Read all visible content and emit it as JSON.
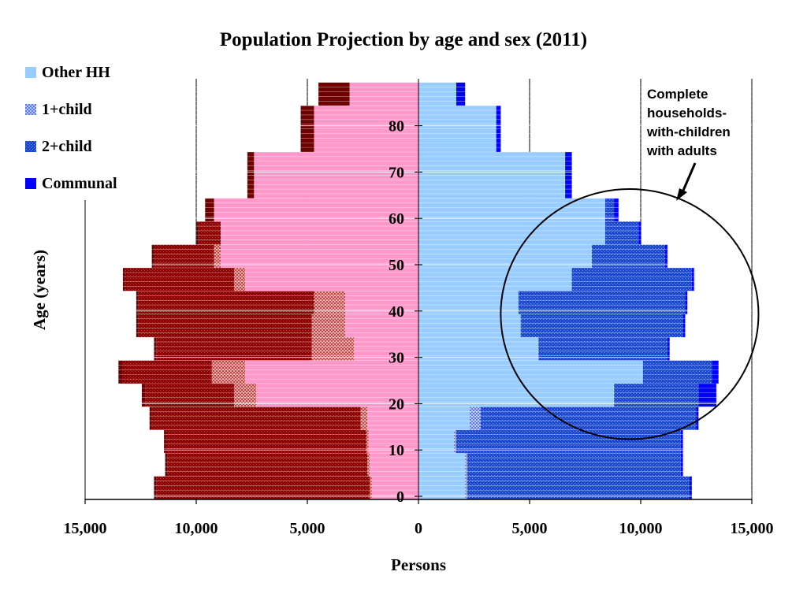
{
  "chart_data": {
    "type": "bar",
    "subtype": "population-pyramid-stacked",
    "title": "Population Projection by age and sex (2011)",
    "xlabel": "Persons",
    "ylabel": "Age (years)",
    "x_range": [
      -15000,
      15000
    ],
    "x_ticks": [
      "15,000",
      "10,000",
      "5,000",
      "0",
      "5,000",
      "10,000",
      "15,000"
    ],
    "x_tick_values": [
      -15000,
      -10000,
      -5000,
      0,
      5000,
      10000,
      15000
    ],
    "y_range": [
      0,
      90
    ],
    "y_ticks": [
      "0",
      "10",
      "20",
      "30",
      "40",
      "50",
      "60",
      "70",
      "80"
    ],
    "y_tick_values": [
      0,
      10,
      20,
      30,
      40,
      50,
      60,
      70,
      80
    ],
    "age_bands": [
      "0-4",
      "5-9",
      "10-14",
      "15-19",
      "20-24",
      "25-29",
      "30-34",
      "35-39",
      "40-44",
      "45-49",
      "50-54",
      "55-59",
      "60-64",
      "65-69",
      "70-74",
      "75-79",
      "80-84",
      "85-89"
    ],
    "females": {
      "side": "left",
      "series": [
        {
          "name": "Other HH",
          "values": [
            2100,
            2200,
            2250,
            2300,
            7300,
            7800,
            2900,
            3300,
            3300,
            7800,
            8900,
            8900,
            9200,
            7400,
            7400,
            4700,
            4700,
            3100
          ]
        },
        {
          "name": "1+child",
          "values": [
            100,
            100,
            100,
            300,
            1000,
            1500,
            1900,
            1500,
            1400,
            500,
            300,
            0,
            0,
            0,
            0,
            0,
            0,
            0
          ]
        },
        {
          "name": "2+child",
          "values": [
            9600,
            9000,
            9000,
            9400,
            4000,
            4000,
            7000,
            7800,
            7900,
            4900,
            2700,
            1000,
            0,
            0,
            0,
            0,
            0,
            0
          ]
        },
        {
          "name": "Communal",
          "values": [
            100,
            100,
            100,
            100,
            150,
            200,
            100,
            100,
            100,
            100,
            100,
            100,
            400,
            300,
            300,
            600,
            600,
            1400
          ]
        }
      ]
    },
    "males": {
      "side": "right",
      "series": [
        {
          "name": "Other HH",
          "values": [
            2100,
            2100,
            1600,
            2300,
            8800,
            10100,
            5400,
            4600,
            4500,
            6900,
            7800,
            8400,
            8400,
            6600,
            6600,
            3500,
            3500,
            1700
          ]
        },
        {
          "name": "1+child",
          "values": [
            100,
            100,
            100,
            500,
            0,
            0,
            0,
            0,
            0,
            0,
            0,
            0,
            0,
            0,
            0,
            0,
            0,
            0
          ]
        },
        {
          "name": "2+child",
          "values": [
            10000,
            9600,
            10100,
            9700,
            3800,
            3100,
            5800,
            7300,
            7500,
            5400,
            3300,
            1500,
            400,
            0,
            0,
            0,
            0,
            0
          ]
        },
        {
          "name": "Communal",
          "values": [
            100,
            100,
            100,
            100,
            800,
            300,
            100,
            100,
            100,
            100,
            100,
            100,
            200,
            300,
            300,
            200,
            200,
            400
          ]
        }
      ]
    },
    "colors": {
      "female": {
        "Other HH": "#ff99cc",
        "1+child": "#c86464",
        "2+child": "#8b0000",
        "Communal": "#6e0000"
      },
      "male": {
        "Other HH": "#99ccff",
        "1+child": "#7f9cf5",
        "2+child": "#1c48c8",
        "Communal": "#0000ff"
      }
    },
    "legend": {
      "placement": "top-left",
      "items": [
        {
          "label": "Other HH",
          "color": "#99ccff",
          "pattern": "solid"
        },
        {
          "label": "1+child",
          "color": "#7f9cf5",
          "pattern": "checker"
        },
        {
          "label": "2+child",
          "color": "#1c48c8",
          "pattern": "dots"
        },
        {
          "label": "Communal",
          "color": "#0000ff",
          "pattern": "solid"
        }
      ]
    },
    "annotation": {
      "lines": [
        "Complete",
        "households-",
        "with-children",
        "with adults"
      ],
      "ellipse_center": [
        9500,
        40
      ],
      "ellipse_radii": [
        5800,
        27
      ]
    },
    "grid": true
  }
}
